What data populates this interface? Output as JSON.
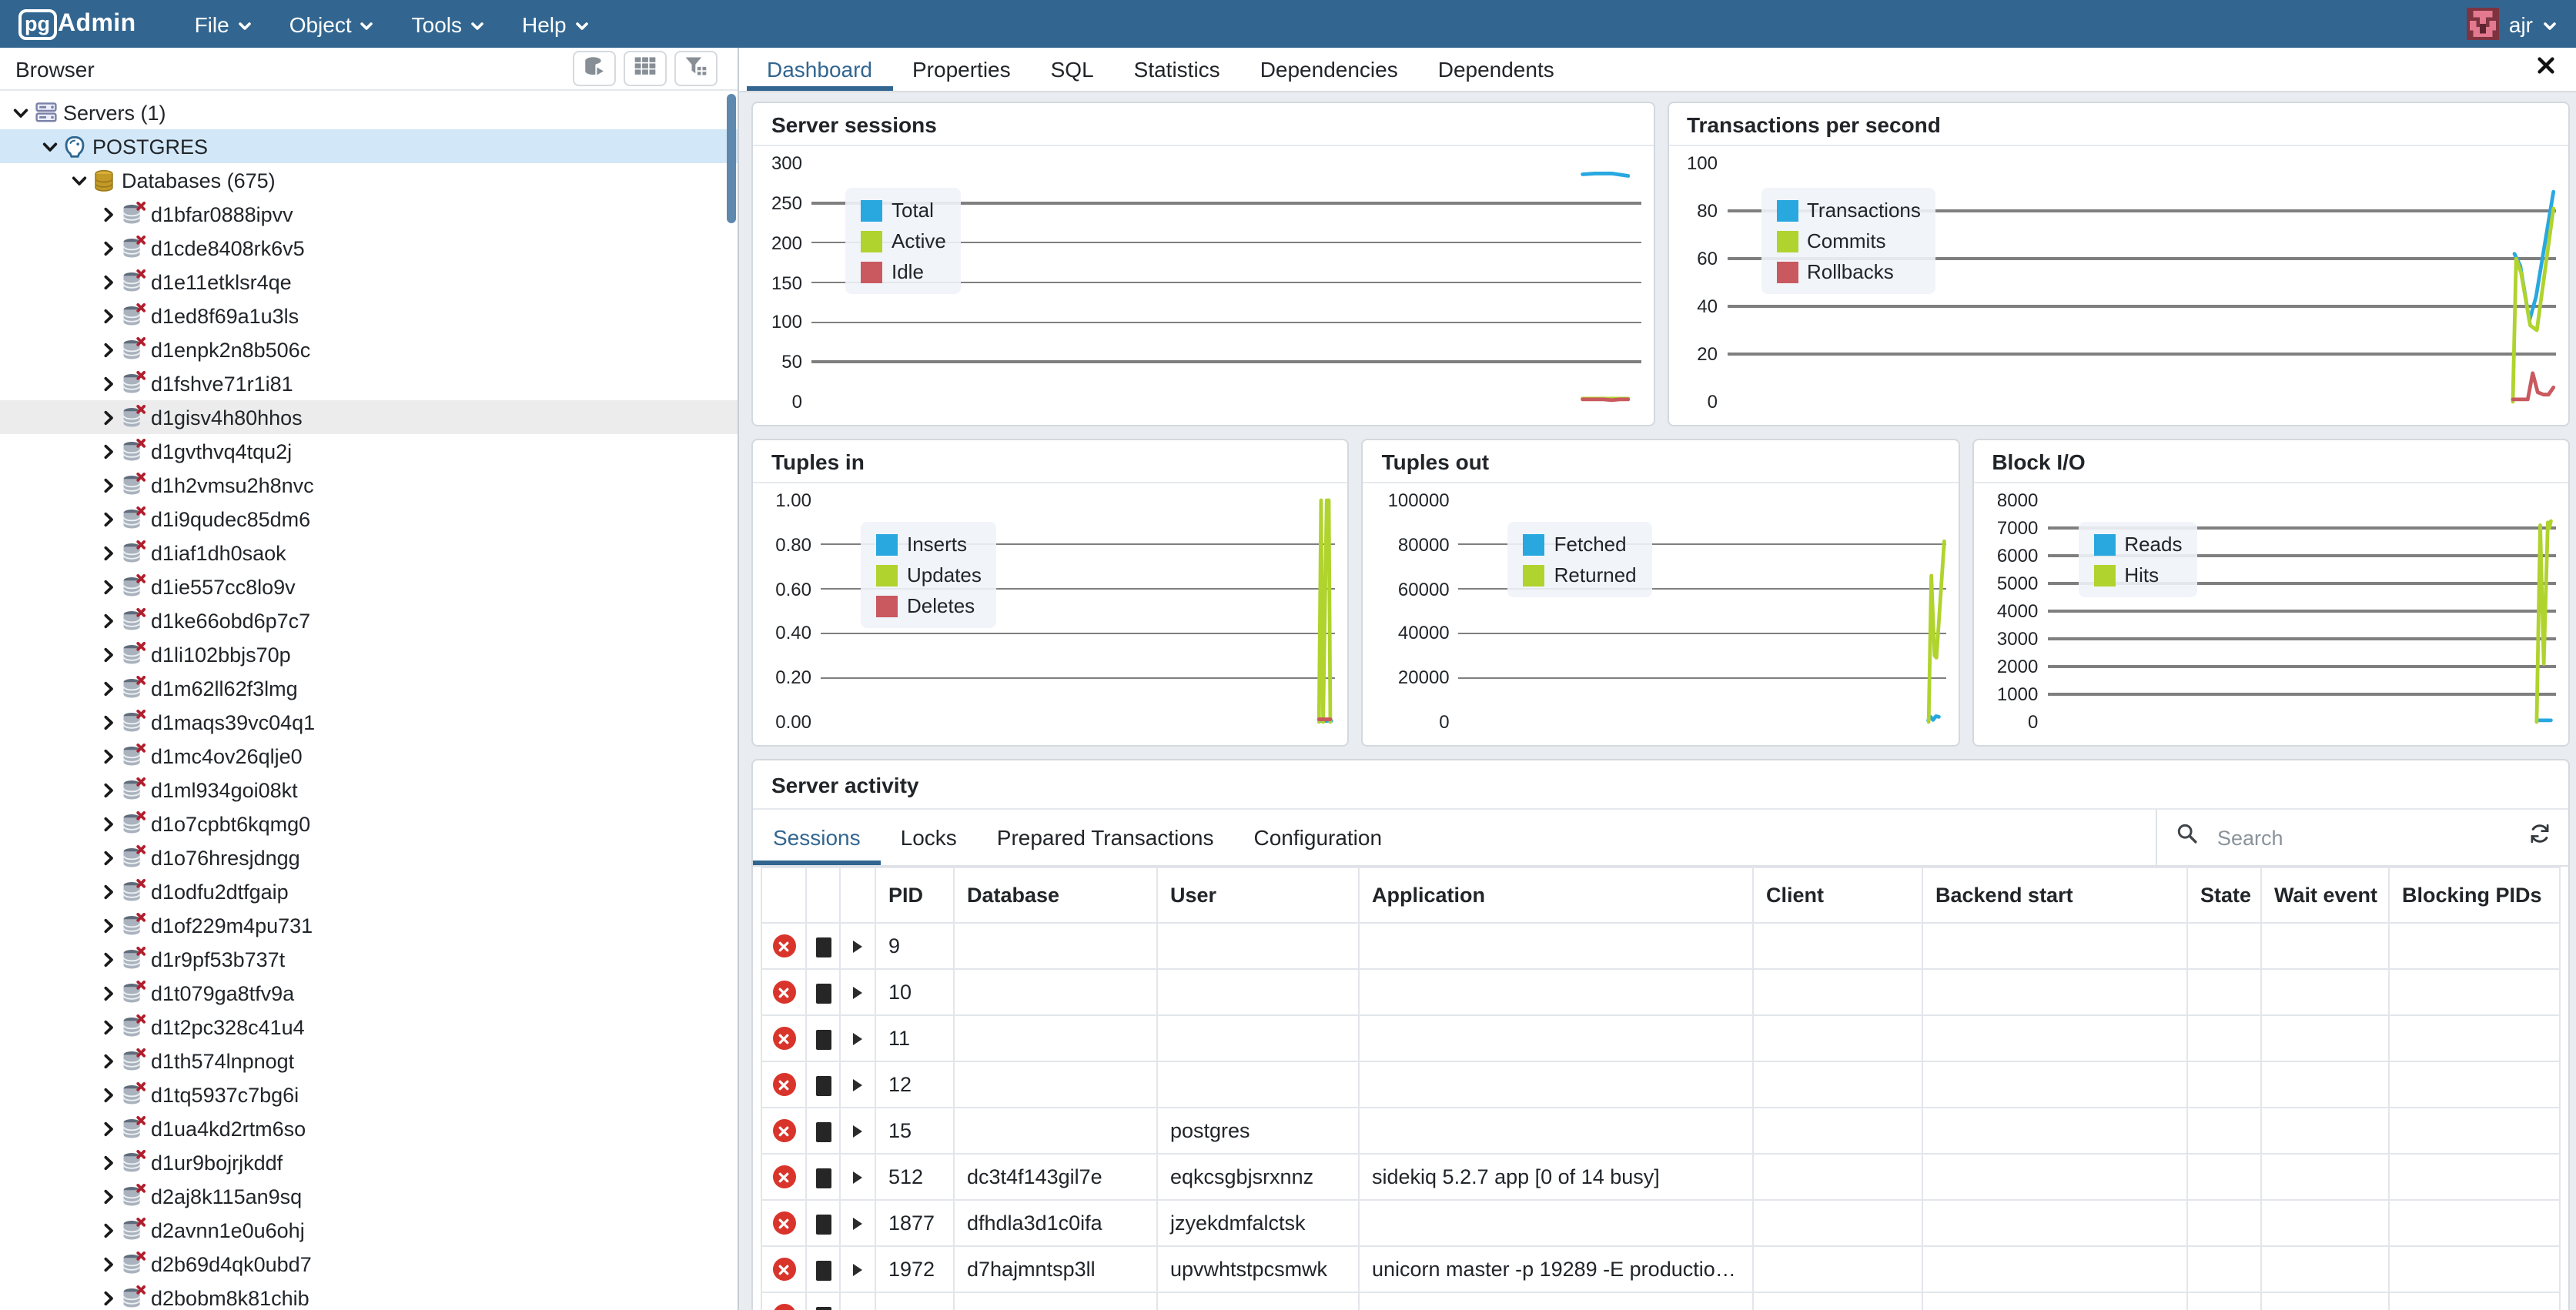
{
  "colors": {
    "topbar": "#326690",
    "accent": "#326690",
    "selection": "#d2e7f7",
    "chart_blue": "#29a8e0",
    "chart_green": "#b0d32e",
    "chart_red": "#c9595f"
  },
  "topbar": {
    "logo": {
      "pg": "pg",
      "admin": "Admin"
    },
    "menus": [
      {
        "label": "File"
      },
      {
        "label": "Object"
      },
      {
        "label": "Tools"
      },
      {
        "label": "Help"
      }
    ],
    "user": {
      "name": "ajr"
    }
  },
  "browser": {
    "title": "Browser",
    "toolbar": [
      {
        "name": "query-tool-button",
        "icon": "query-tool-icon"
      },
      {
        "name": "view-data-button",
        "icon": "view-data-icon"
      },
      {
        "name": "filtered-rows-button",
        "icon": "filter-icon"
      }
    ],
    "tree": [
      {
        "label": "Servers (1)",
        "level": 0,
        "icon": "server-group-icon",
        "expanded": true
      },
      {
        "label": "POSTGRES",
        "level": 1,
        "icon": "postgres-server-icon",
        "expanded": true,
        "selected": true
      },
      {
        "label": "Databases (675)",
        "level": 2,
        "icon": "databases-collection-icon",
        "expanded": true
      },
      {
        "label": "d1bfar0888ipvv",
        "level": 3,
        "icon": "database-disconnected-icon",
        "expanded": false
      },
      {
        "label": "d1cde8408rk6v5",
        "level": 3,
        "icon": "database-disconnected-icon",
        "expanded": false
      },
      {
        "label": "d1e11etklsr4qe",
        "level": 3,
        "icon": "database-disconnected-icon",
        "expanded": false
      },
      {
        "label": "d1ed8f69a1u3ls",
        "level": 3,
        "icon": "database-disconnected-icon",
        "expanded": false
      },
      {
        "label": "d1enpk2n8b506c",
        "level": 3,
        "icon": "database-disconnected-icon",
        "expanded": false
      },
      {
        "label": "d1fshve71r1i81",
        "level": 3,
        "icon": "database-disconnected-icon",
        "expanded": false
      },
      {
        "label": "d1gisv4h80hhos",
        "level": 3,
        "icon": "database-disconnected-icon",
        "expanded": false,
        "hover": true
      },
      {
        "label": "d1gvthvq4tqu2j",
        "level": 3,
        "icon": "database-disconnected-icon",
        "expanded": false
      },
      {
        "label": "d1h2vmsu2h8nvc",
        "level": 3,
        "icon": "database-disconnected-icon",
        "expanded": false
      },
      {
        "label": "d1i9qudec85dm6",
        "level": 3,
        "icon": "database-disconnected-icon",
        "expanded": false
      },
      {
        "label": "d1iaf1dh0saok",
        "level": 3,
        "icon": "database-disconnected-icon",
        "expanded": false
      },
      {
        "label": "d1ie557cc8lo9v",
        "level": 3,
        "icon": "database-disconnected-icon",
        "expanded": false
      },
      {
        "label": "d1ke66obd6p7c7",
        "level": 3,
        "icon": "database-disconnected-icon",
        "expanded": false
      },
      {
        "label": "d1li102bbjs70p",
        "level": 3,
        "icon": "database-disconnected-icon",
        "expanded": false
      },
      {
        "label": "d1m62ll62f3lmg",
        "level": 3,
        "icon": "database-disconnected-icon",
        "expanded": false
      },
      {
        "label": "d1maqs39vc04q1",
        "level": 3,
        "icon": "database-disconnected-icon",
        "expanded": false
      },
      {
        "label": "d1mc4ov26qlje0",
        "level": 3,
        "icon": "database-disconnected-icon",
        "expanded": false
      },
      {
        "label": "d1ml934goi08kt",
        "level": 3,
        "icon": "database-disconnected-icon",
        "expanded": false
      },
      {
        "label": "d1o7cpbt6kqmg0",
        "level": 3,
        "icon": "database-disconnected-icon",
        "expanded": false
      },
      {
        "label": "d1o76hresjdngg",
        "level": 3,
        "icon": "database-disconnected-icon",
        "expanded": false
      },
      {
        "label": "d1odfu2dtfgaip",
        "level": 3,
        "icon": "database-disconnected-icon",
        "expanded": false
      },
      {
        "label": "d1of229m4pu731",
        "level": 3,
        "icon": "database-disconnected-icon",
        "expanded": false
      },
      {
        "label": "d1r9pf53b737t",
        "level": 3,
        "icon": "database-disconnected-icon",
        "expanded": false
      },
      {
        "label": "d1t079ga8tfv9a",
        "level": 3,
        "icon": "database-disconnected-icon",
        "expanded": false
      },
      {
        "label": "d1t2pc328c41u4",
        "level": 3,
        "icon": "database-disconnected-icon",
        "expanded": false
      },
      {
        "label": "d1th574lnpnogt",
        "level": 3,
        "icon": "database-disconnected-icon",
        "expanded": false
      },
      {
        "label": "d1tq5937c7bg6i",
        "level": 3,
        "icon": "database-disconnected-icon",
        "expanded": false
      },
      {
        "label": "d1ua4kd2rtm6so",
        "level": 3,
        "icon": "database-disconnected-icon",
        "expanded": false
      },
      {
        "label": "d1ur9bojrjkddf",
        "level": 3,
        "icon": "database-disconnected-icon",
        "expanded": false
      },
      {
        "label": "d2aj8k115an9sq",
        "level": 3,
        "icon": "database-disconnected-icon",
        "expanded": false
      },
      {
        "label": "d2avnn1e0u6ohj",
        "level": 3,
        "icon": "database-disconnected-icon",
        "expanded": false
      },
      {
        "label": "d2b69d4qk0ubd7",
        "level": 3,
        "icon": "database-disconnected-icon",
        "expanded": false
      },
      {
        "label": "d2bobm8k81chib",
        "level": 3,
        "icon": "database-disconnected-icon",
        "expanded": false
      }
    ]
  },
  "main_tabs": [
    {
      "label": "Dashboard",
      "active": true
    },
    {
      "label": "Properties",
      "active": false
    },
    {
      "label": "SQL",
      "active": false
    },
    {
      "label": "Statistics",
      "active": false
    },
    {
      "label": "Dependencies",
      "active": false
    },
    {
      "label": "Dependents",
      "active": false
    }
  ],
  "chart_data": [
    {
      "id": "server_sessions",
      "type": "line",
      "title": "Server sessions",
      "ylim": [
        0,
        300
      ],
      "grid": true,
      "legend_position": "top-left",
      "label_w": 30,
      "legend_left": 22,
      "legend_top": 16,
      "yticks": [
        {
          "label": "300",
          "v": 300
        },
        {
          "label": "250",
          "v": 250
        },
        {
          "label": "200",
          "v": 200
        },
        {
          "label": "150",
          "v": 150
        },
        {
          "label": "100",
          "v": 100
        },
        {
          "label": "50",
          "v": 50
        },
        {
          "label": "0",
          "v": 0
        }
      ],
      "series": [
        {
          "name": "Total",
          "color": "#29a8e0",
          "points": [
            [
              93,
              286
            ],
            [
              94.5,
              287
            ],
            [
              96.5,
              287
            ],
            [
              98.5,
              284
            ]
          ]
        },
        {
          "name": "Active",
          "color": "#b0d32e",
          "points": [
            [
              93,
              4
            ],
            [
              98.5,
              4
            ]
          ]
        },
        {
          "name": "Idle",
          "color": "#c9595f",
          "points": [
            [
              93,
              3
            ],
            [
              95.5,
              3
            ],
            [
              96.5,
              2
            ],
            [
              97.5,
              3
            ],
            [
              98.5,
              3
            ]
          ]
        }
      ]
    },
    {
      "id": "tps",
      "type": "line",
      "title": "Transactions per second",
      "ylim": [
        0,
        100
      ],
      "grid": true,
      "legend_position": "top-left",
      "label_w": 30,
      "legend_left": 22,
      "legend_top": 16,
      "yticks": [
        {
          "label": "100",
          "v": 100
        },
        {
          "label": "80",
          "v": 80
        },
        {
          "label": "60",
          "v": 60
        },
        {
          "label": "40",
          "v": 40
        },
        {
          "label": "20",
          "v": 20
        },
        {
          "label": "0",
          "v": 0
        }
      ],
      "series": [
        {
          "name": "Transactions",
          "color": "#29a8e0",
          "points": [
            [
              94.9,
              62
            ],
            [
              95.6,
              57
            ],
            [
              96.7,
              34
            ],
            [
              97.5,
              44
            ],
            [
              99.6,
              88
            ]
          ]
        },
        {
          "name": "Commits",
          "color": "#b0d32e",
          "points": [
            [
              94.7,
              0
            ],
            [
              95.1,
              60
            ],
            [
              95.7,
              54
            ],
            [
              96.8,
              32
            ],
            [
              97.6,
              30
            ],
            [
              99.6,
              81
            ]
          ]
        },
        {
          "name": "Rollbacks",
          "color": "#c9595f",
          "points": [
            [
              94.7,
              1
            ],
            [
              96.5,
              1
            ],
            [
              97.1,
              12
            ],
            [
              97.7,
              4
            ],
            [
              98.4,
              3
            ],
            [
              99.0,
              3
            ],
            [
              99.6,
              6
            ]
          ]
        }
      ]
    },
    {
      "id": "tuples_in",
      "type": "line",
      "title": "Tuples in",
      "ylim": [
        0,
        1
      ],
      "grid": true,
      "legend_position": "top-left",
      "label_w": 36,
      "legend_left": 26,
      "legend_top": 14,
      "yticks": [
        {
          "label": "1.00",
          "v": 1.0
        },
        {
          "label": "0.80",
          "v": 0.8
        },
        {
          "label": "0.60",
          "v": 0.6
        },
        {
          "label": "0.40",
          "v": 0.4
        },
        {
          "label": "0.20",
          "v": 0.2
        },
        {
          "label": "0.00",
          "v": 0
        }
      ],
      "series": [
        {
          "name": "Inserts",
          "color": "#29a8e0",
          "points": [
            [
              96.8,
              0.005
            ],
            [
              99.2,
              0.005
            ]
          ]
        },
        {
          "name": "Updates",
          "color": "#b0d32e",
          "points": [
            [
              96.8,
              0
            ],
            [
              97.2,
              1
            ],
            [
              97.6,
              0
            ],
            [
              98.3,
              1
            ],
            [
              98.7,
              1
            ],
            [
              99.0,
              0
            ]
          ]
        },
        {
          "name": "Deletes",
          "color": "#c9595f",
          "points": [
            [
              96.8,
              0.012
            ],
            [
              99.0,
              0.012
            ]
          ]
        }
      ]
    },
    {
      "id": "tuples_out",
      "type": "line",
      "title": "Tuples out",
      "ylim": [
        0,
        100000
      ],
      "grid": true,
      "legend_position": "top-left",
      "label_w": 54,
      "legend_left": 32,
      "legend_top": 14,
      "yticks": [
        {
          "label": "100000",
          "v": 100000
        },
        {
          "label": "80000",
          "v": 80000
        },
        {
          "label": "60000",
          "v": 60000
        },
        {
          "label": "40000",
          "v": 40000
        },
        {
          "label": "20000",
          "v": 20000
        },
        {
          "label": "0",
          "v": 0
        }
      ],
      "series": [
        {
          "name": "Fetched",
          "color": "#29a8e0",
          "points": [
            [
              96.5,
              700
            ],
            [
              97.0,
              2300
            ],
            [
              97.5,
              900
            ],
            [
              98.1,
              2600
            ],
            [
              98.7,
              2300
            ]
          ]
        },
        {
          "name": "Returned",
          "color": "#b0d32e",
          "points": [
            [
              96.6,
              0
            ],
            [
              97.15,
              66000
            ],
            [
              97.8,
              30000
            ],
            [
              98.2,
              29000
            ],
            [
              99.8,
              81500
            ]
          ]
        }
      ]
    },
    {
      "id": "block_io",
      "type": "line",
      "title": "Block I/O",
      "ylim": [
        0,
        8000
      ],
      "grid": true,
      "legend_position": "top-left",
      "label_w": 40,
      "legend_left": 20,
      "legend_top": 14,
      "yticks": [
        {
          "label": "8000",
          "v": 8000
        },
        {
          "label": "7000",
          "v": 7000
        },
        {
          "label": "6000",
          "v": 6000
        },
        {
          "label": "5000",
          "v": 5000
        },
        {
          "label": "4000",
          "v": 4000
        },
        {
          "label": "3000",
          "v": 3000
        },
        {
          "label": "2000",
          "v": 2000
        },
        {
          "label": "1000",
          "v": 1000
        },
        {
          "label": "0",
          "v": 0
        }
      ],
      "series": [
        {
          "name": "Reads",
          "color": "#29a8e0",
          "points": [
            [
              96.1,
              60
            ],
            [
              98.9,
              60
            ]
          ]
        },
        {
          "name": "Hits",
          "color": "#b0d32e",
          "points": [
            [
              96.1,
              0
            ],
            [
              96.8,
              7100
            ],
            [
              97.5,
              2100
            ],
            [
              98.3,
              7200
            ],
            [
              98.6,
              7000
            ],
            [
              98.9,
              7250
            ]
          ]
        }
      ]
    }
  ],
  "server_activity": {
    "title": "Server activity",
    "tabs": [
      {
        "label": "Sessions",
        "active": true
      },
      {
        "label": "Locks",
        "active": false
      },
      {
        "label": "Prepared Transactions",
        "active": false
      },
      {
        "label": "Configuration",
        "active": false
      }
    ],
    "search": {
      "placeholder": "Search"
    },
    "table": {
      "columns": [
        "",
        "",
        "",
        "PID",
        "Database",
        "User",
        "Application",
        "Client",
        "Backend start",
        "State",
        "Wait event",
        "Blocking PIDs"
      ],
      "rows": [
        {
          "pid": "9",
          "database": "",
          "user": "",
          "application": "",
          "client": "",
          "backend_start": "",
          "state": "",
          "wait_event": "",
          "blocking_pids": ""
        },
        {
          "pid": "10",
          "database": "",
          "user": "",
          "application": "",
          "client": "",
          "backend_start": "",
          "state": "",
          "wait_event": "",
          "blocking_pids": ""
        },
        {
          "pid": "11",
          "database": "",
          "user": "",
          "application": "",
          "client": "",
          "backend_start": "",
          "state": "",
          "wait_event": "",
          "blocking_pids": ""
        },
        {
          "pid": "12",
          "database": "",
          "user": "",
          "application": "",
          "client": "",
          "backend_start": "",
          "state": "",
          "wait_event": "",
          "blocking_pids": ""
        },
        {
          "pid": "15",
          "database": "",
          "user": "postgres",
          "application": "",
          "client": "",
          "backend_start": "",
          "state": "",
          "wait_event": "",
          "blocking_pids": ""
        },
        {
          "pid": "512",
          "database": "dc3t4f143gil7e",
          "user": "eqkcsgbjsrxnnz",
          "application": "sidekiq 5.2.7 app [0 of 14 busy]",
          "client": "",
          "backend_start": "",
          "state": "",
          "wait_event": "",
          "blocking_pids": ""
        },
        {
          "pid": "1877",
          "database": "dfhdla3d1c0ifa",
          "user": "jzyekdmfalctsk",
          "application": "",
          "client": "",
          "backend_start": "",
          "state": "",
          "wait_event": "",
          "blocking_pids": ""
        },
        {
          "pid": "1972",
          "database": "d7hajmntsp3ll",
          "user": "upvwhtstpcsmwk",
          "application": "unicorn master -p 19289 -E production…",
          "client": "",
          "backend_start": "",
          "state": "",
          "wait_event": "",
          "blocking_pids": ""
        },
        {
          "pid": "",
          "database": "",
          "user": "",
          "application": "",
          "client": "",
          "backend_start": "",
          "state": "",
          "wait_event": "",
          "blocking_pids": ""
        }
      ]
    }
  }
}
